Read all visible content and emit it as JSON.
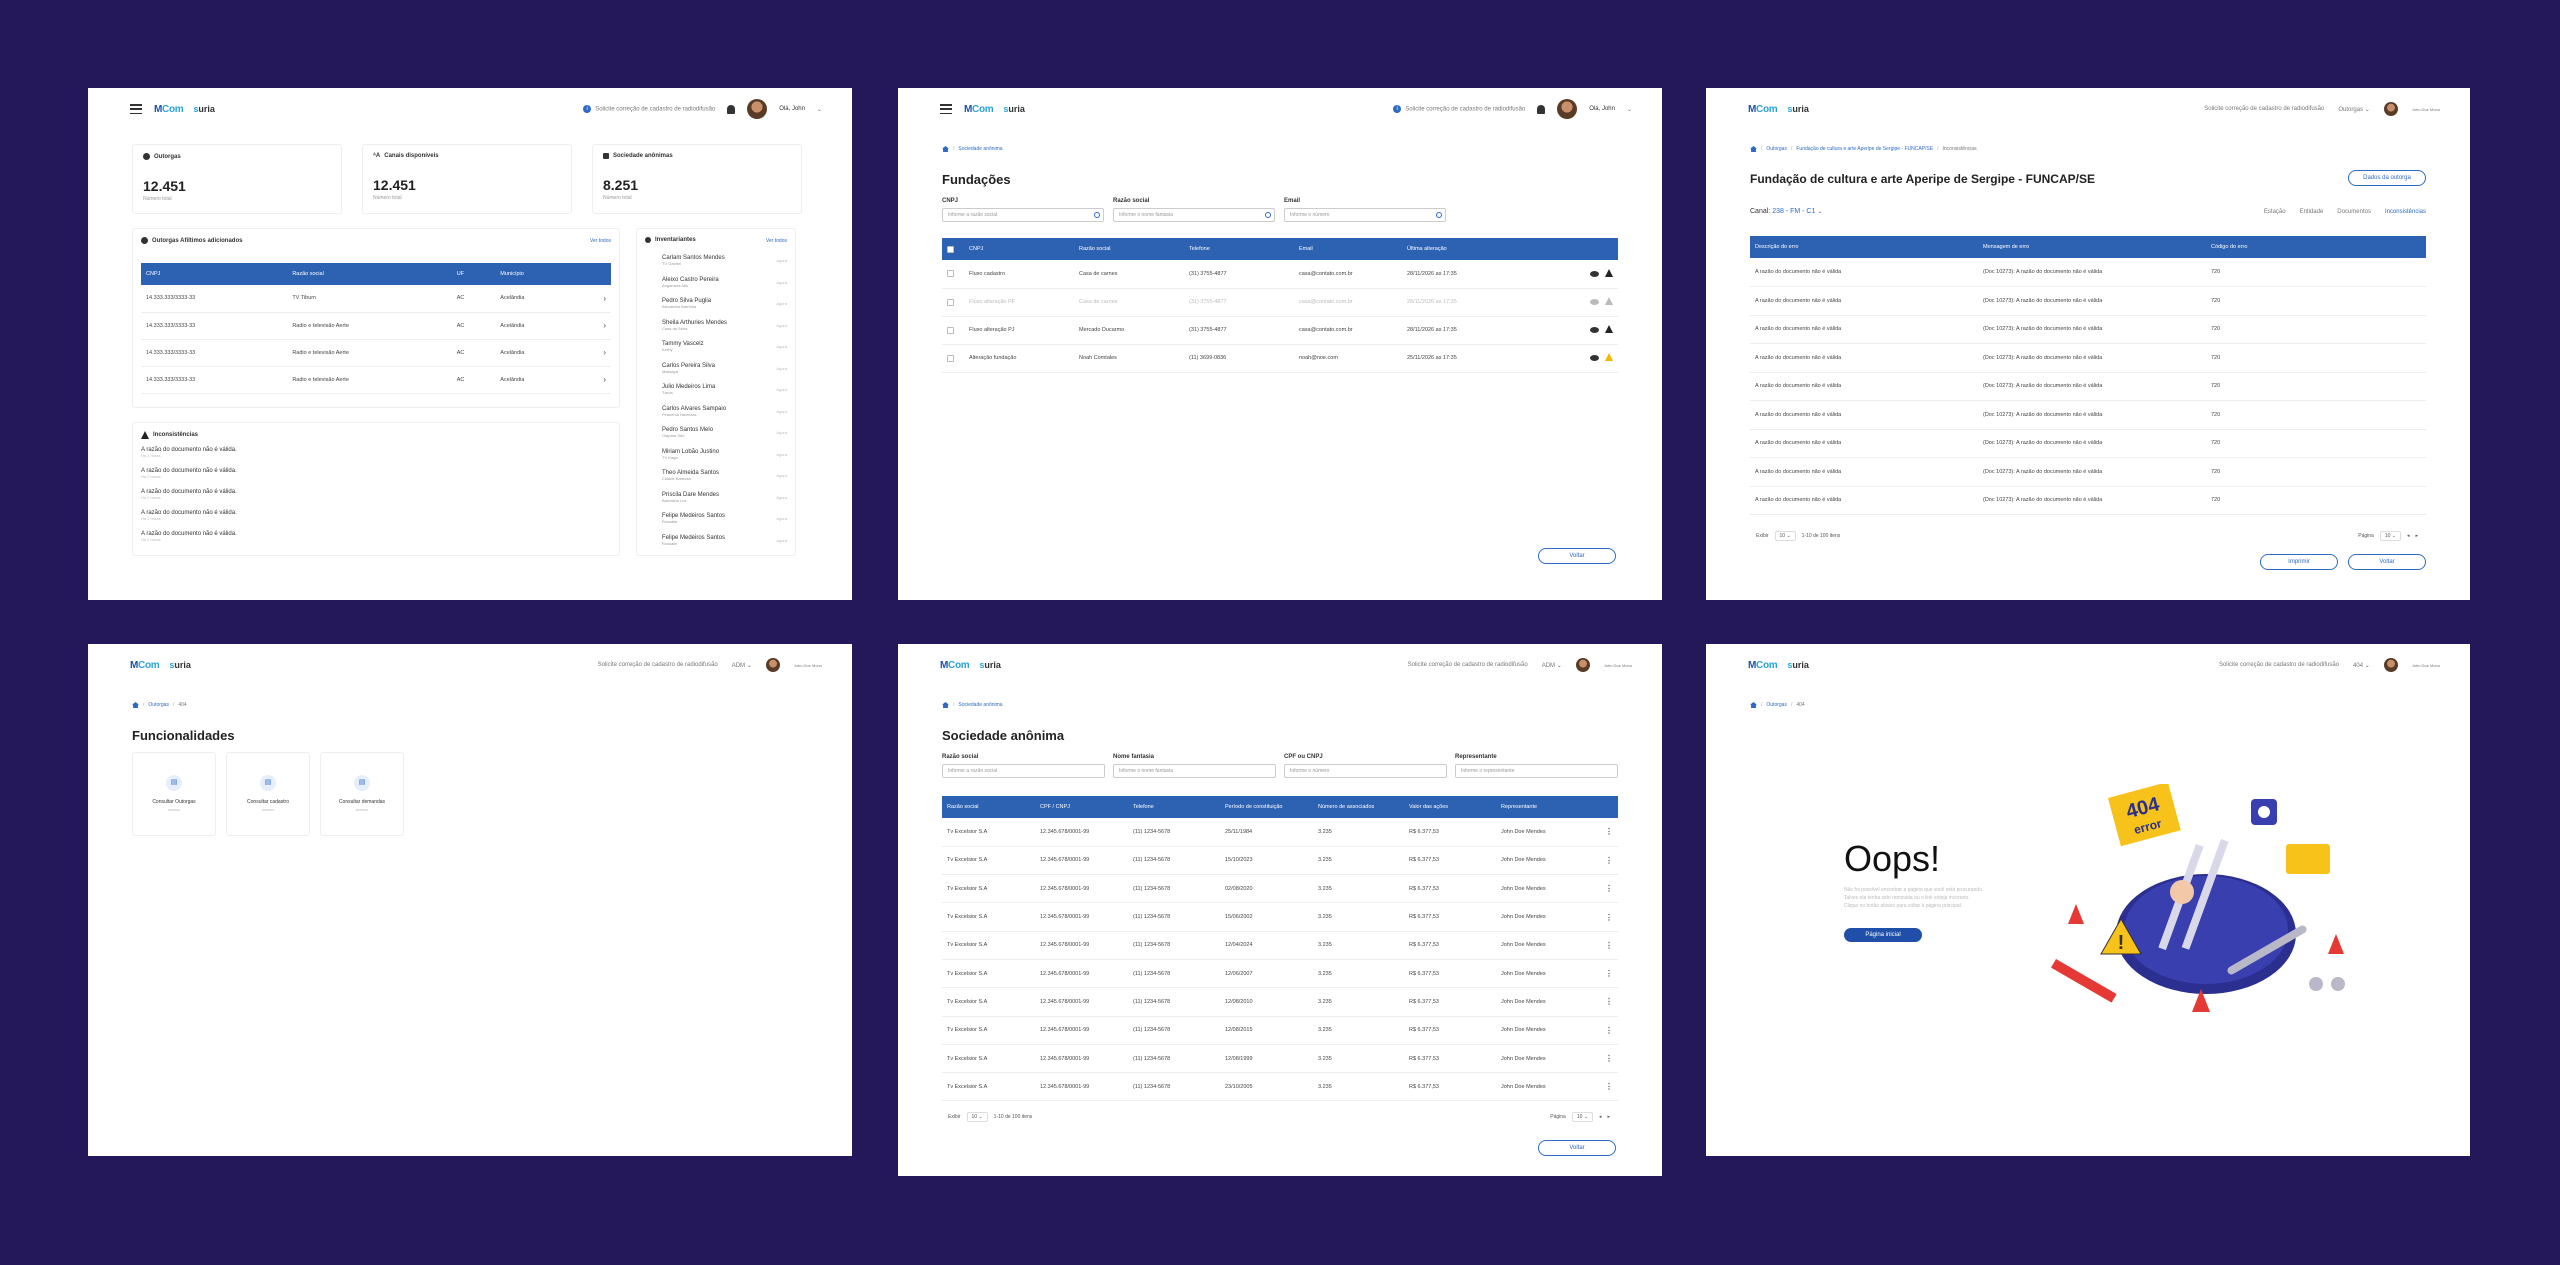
{
  "header": {
    "logo_mcom_1": "M",
    "logo_mcom_2": "Com",
    "logo_suria_1": "s",
    "logo_suria_2": "uria",
    "correction_request": "Solicite correção de cadastro de radiodifusão",
    "greeting": "Olá, John",
    "user_name": "John Doe Mono"
  },
  "dashboard": {
    "stats": [
      {
        "label": "Outorgas",
        "value": "12.451",
        "sub": "Número total"
      },
      {
        "label": "Canais disponíveis",
        "value": "12.451",
        "sub": "Número total"
      },
      {
        "label": "Sociedade anônimas",
        "value": "8.251",
        "sub": "Número total"
      }
    ],
    "outorgas_title": "Outorgas Afiltimos adicionados",
    "see_all": "Ver todos",
    "outorgas_cols": [
      "CNPJ",
      "Razão social",
      "UF",
      "Município"
    ],
    "outorgas_rows": [
      [
        "14.333.333/3333-33",
        "TV Tibum",
        "AC",
        "Acelândia"
      ],
      [
        "14.333.333/3333-33",
        "Radio e televisão Aerte",
        "AC",
        "Acelândia"
      ],
      [
        "14.333.333/3333-33",
        "Radio e televisão Aerte",
        "AC",
        "Acelândia"
      ],
      [
        "14.333.333/3333-33",
        "Radio e televisão Aerte",
        "AC",
        "Acelândia"
      ]
    ],
    "inconsistencias_title": "Inconsistências",
    "inconsistencias": [
      "A razão do documento não é válida.",
      "A razão do documento não é válida.",
      "A razão do documento não é válida.",
      "A razão do documento não é válida.",
      "A razão do documento não é válida."
    ],
    "inconsistencias_sub": "Há 2 horas",
    "inventariantes_title": "Inventariantes",
    "inventariantes": [
      {
        "name": "Carlam Santos Mendes",
        "sub": "TV Gabriel"
      },
      {
        "name": "Aleixo Castro Pereira",
        "sub": "Angamera Alto"
      },
      {
        "name": "Pedro Silva Puglia",
        "sub": "Alexandra Barrinha"
      },
      {
        "name": "Sheila Arthuries Mendes",
        "sub": "Casa da Sena"
      },
      {
        "name": "Tammy Vascelz",
        "sub": "Kerby"
      },
      {
        "name": "Carlos Pereira Silva",
        "sub": "Massaya"
      },
      {
        "name": "Julio Medeiros Lima",
        "sub": "Tácus"
      },
      {
        "name": "Carlos Alvares Sampaio",
        "sub": "Piracema Naveclas"
      },
      {
        "name": "Pedro Santos Melo",
        "sub": "Oiapara São"
      },
      {
        "name": "Miriam Lobão Justino",
        "sub": "TV Kagá"
      },
      {
        "name": "Theo Almeida Santos",
        "sub": "Cidade Barbosa"
      },
      {
        "name": "Priscila Dare Mendes",
        "sub": "Barbalina Luz"
      },
      {
        "name": "Felipe Medeiros Santos",
        "sub": "Rossalle"
      },
      {
        "name": "Felipe Medeiros Santos",
        "sub": "Rossalle"
      }
    ],
    "inventariantes_date": "Agora"
  },
  "fundacoes": {
    "breadcrumb": "Sociedade anônima",
    "title": "Fundações",
    "filter_labels": [
      "CNPJ",
      "Razão social",
      "Email"
    ],
    "filter_placeholders": [
      "Informe a razão social",
      "Informe o nome fantasia",
      "Informe o número"
    ],
    "cols": [
      "CNPJ",
      "Razão social",
      "Telefone",
      "Email",
      "Última alteração"
    ],
    "rows": [
      [
        "Fluxo cadastro",
        "Casa de carnes",
        "(31) 3755-4877",
        "casa@contato.com.br",
        "28/11/2026 as 17:35"
      ],
      [
        "Fluxo alteração PF",
        "Casa de carnes",
        "(31) 3755-4877",
        "casa@contato.com.br",
        "28/11/2026 as 17:35"
      ],
      [
        "Fluxo alteração PJ",
        "Mercado Ducarmo",
        "(31) 3755-4877",
        "casa@contato.com.br",
        "28/11/2026 as 17:35"
      ],
      [
        "Alteração fundação",
        "Noah Comtales",
        "(11) 3699-0836",
        "noah@noe.com",
        "25/11/2026 as 17:35"
      ]
    ],
    "back": "Voltar"
  },
  "inconsist": {
    "breadcrumb_1": "Outorgas",
    "breadcrumb_2": "Fundação de cultura e arte Aperipe de Sergipe - FUNCAP/SE",
    "breadcrumb_3": "Inconsistências",
    "title": "Fundação de cultura e arte Aperipe de Sergipe - FUNCAP/SE",
    "data_button": "Dados da outorga",
    "canal_label": "Canal:",
    "canal_value": "238 - FM - C1",
    "tabs": [
      "Estação",
      "Entidade",
      "Documentos",
      "Inconsistências"
    ],
    "cols": [
      "Descrição do erro",
      "Mensagem de erro",
      "Código do erro"
    ],
    "row": [
      "A razão do documento não é válida",
      "(Doc 10273): A razão do documento não é válida",
      "720"
    ],
    "show_label": "Exibir",
    "per_page": "10",
    "range": "1-10 de 100 itens",
    "page_label": "Página",
    "page": "10",
    "print": "Imprimir",
    "back": "Voltar",
    "nav_outorgas": "Outorgas"
  },
  "funcionalidades": {
    "breadcrumb_1": "Outorgas",
    "breadcrumb_2": "404",
    "title": "Funcionalidades",
    "profile": "ADM",
    "cards": [
      {
        "label": "Consultar Outorgas",
        "sub": "acesso"
      },
      {
        "label": "Consultar cadastro",
        "sub": "acesso"
      },
      {
        "label": "Consultar demandas",
        "sub": "acesso"
      }
    ]
  },
  "sociedade": {
    "breadcrumb": "Sociedade anônima",
    "title": "Sociedade anônima",
    "profile": "ADM",
    "filter_labels": [
      "Razão social",
      "Nome fantasia",
      "CPF ou CNPJ",
      "Representante"
    ],
    "filter_placeholders": [
      "Informe a razão social",
      "Informe o nome fantasia",
      "Informe o número",
      "Informe o representante"
    ],
    "cols": [
      "Razão social",
      "CPF / CNPJ",
      "Telefone",
      "Período de constituição",
      "Número de associados",
      "Valor das ações",
      "Representante"
    ],
    "rows": [
      [
        "Tv Excelsior S.A",
        "12.345.678/0001-99",
        "(11) 1234-5678",
        "25/11/1984",
        "3.235",
        "R$ 6.377,53",
        "John Doe Mendes"
      ],
      [
        "Tv Excelsior S.A",
        "12.345.678/0001-99",
        "(11) 1234-5678",
        "15/10/2023",
        "3.235",
        "R$ 6.377,53",
        "John Doe Mendes"
      ],
      [
        "Tv Excelsior S.A",
        "12.345.678/0001-99",
        "(11) 1234-5678",
        "02/08/2020",
        "3.235",
        "R$ 6.377,53",
        "John Doe Mendes"
      ],
      [
        "Tv Excelsior S.A",
        "12.345.678/0001-99",
        "(11) 1234-5678",
        "15/06/2002",
        "3.235",
        "R$ 6.377,53",
        "John Doe Mendes"
      ],
      [
        "Tv Excelsior S.A",
        "12.345.678/0001-99",
        "(11) 1234-5678",
        "12/04/2024",
        "3.235",
        "R$ 6.377,53",
        "John Doe Mendes"
      ],
      [
        "Tv Excelsior S.A",
        "12.345.678/0001-99",
        "(11) 1234-5678",
        "12/06/2007",
        "3.235",
        "R$ 6.377,53",
        "John Doe Mendes"
      ],
      [
        "Tv Excelsior S.A",
        "12.345.678/0001-99",
        "(11) 1234-5678",
        "12/08/2010",
        "3.235",
        "R$ 6.377,53",
        "John Doe Mendes"
      ],
      [
        "Tv Excelsior S.A",
        "12.345.678/0001-99",
        "(11) 1234-5678",
        "12/08/2015",
        "3.235",
        "R$ 6.377,53",
        "John Doe Mendes"
      ],
      [
        "Tv Excelsior S.A",
        "12.345.678/0001-99",
        "(11) 1234-5678",
        "12/08/1999",
        "3.235",
        "R$ 6.377,53",
        "John Doe Mendes"
      ],
      [
        "Tv Excelsior S.A",
        "12.345.678/0001-99",
        "(11) 1234-5678",
        "23/10/2005",
        "3.235",
        "R$ 6.377,53",
        "John Doe Mendes"
      ]
    ],
    "show_label": "Exibir",
    "per_page": "10",
    "range": "1-10 de 100 itens",
    "page_label": "Página",
    "page": "10",
    "back": "Voltar"
  },
  "error404": {
    "breadcrumb_1": "Outorgas",
    "breadcrumb_2": "404",
    "profile": "404",
    "title": "Oops!",
    "message": "Não foi possível encontrar a página que você está procurando. Talvez ela tenha sido removida ou o link esteja incorreto. Clique no botão abaixo para voltar à página principal.",
    "button": "Página inicial",
    "sign_line1": "404",
    "sign_line2": "error"
  }
}
